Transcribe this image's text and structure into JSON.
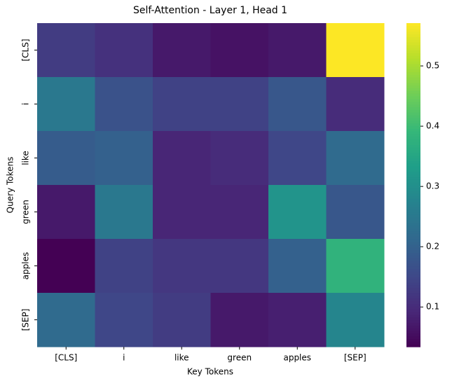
{
  "chart_data": {
    "type": "heatmap",
    "title": "Self-Attention - Layer 1, Head 1",
    "xlabel": "Key Tokens",
    "ylabel": "Query Tokens",
    "x": [
      "[CLS]",
      "i",
      "like",
      "green",
      "apples",
      "[SEP]"
    ],
    "y": [
      "[CLS]",
      "i",
      "like",
      "green",
      "apples",
      "[SEP]"
    ],
    "values": [
      [
        0.13,
        0.11,
        0.07,
        0.06,
        0.07,
        0.57
      ],
      [
        0.25,
        0.17,
        0.14,
        0.14,
        0.18,
        0.1
      ],
      [
        0.19,
        0.2,
        0.09,
        0.1,
        0.15,
        0.22
      ],
      [
        0.07,
        0.25,
        0.09,
        0.09,
        0.31,
        0.18
      ],
      [
        0.034,
        0.14,
        0.12,
        0.12,
        0.2,
        0.38
      ],
      [
        0.22,
        0.15,
        0.13,
        0.07,
        0.08,
        0.28
      ]
    ],
    "colormap": "viridis",
    "clim": [
      0.034,
      0.571
    ],
    "cticks": [
      0.1,
      0.2,
      0.3,
      0.4,
      0.5
    ]
  }
}
